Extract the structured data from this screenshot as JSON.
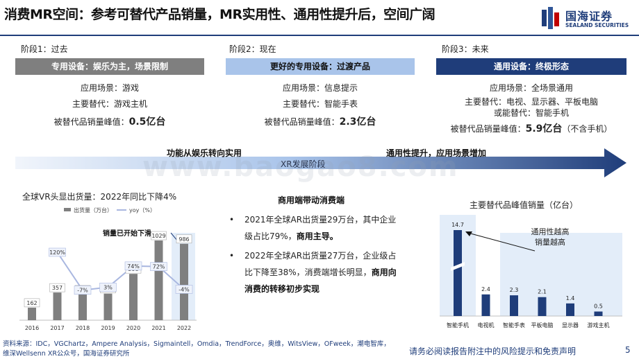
{
  "header": {
    "title": "消费MR空间：参考可替代产品销量，MR实用性、通用性提升后，空间广阔",
    "logo_cn": "国海证券",
    "logo_en": "SEALAND SECURITIES",
    "accent": "#1f3d7a"
  },
  "stages": [
    {
      "label": "阶段1：过去",
      "bar": "专用设备：娱乐为主，场景限制",
      "scene": "应用场景：游戏",
      "replace": "主要替代：游戏主机",
      "replace2": "",
      "peak_prefix": "被替代品销量峰值：",
      "peak_value": "0.5亿台",
      "peak_note": ""
    },
    {
      "label": "阶段2：现在",
      "bar": "更好的专用设备：过渡产品",
      "scene": "应用场景：信息提示",
      "replace": "主要替代：智能手表",
      "replace2": "",
      "peak_prefix": "被替代品销量峰值：",
      "peak_value": "2.3亿台",
      "peak_note": ""
    },
    {
      "label": "阶段3：未来",
      "bar": "通用设备：终极形态",
      "scene": "应用场景：全场景通用",
      "replace": "主要替代：电视、显示器、平板电脑",
      "replace2": "或能替代：智能手机",
      "peak_prefix": "被替代品销量峰值：",
      "peak_value": "5.9亿台",
      "peak_note": "（不含手机）"
    }
  ],
  "arrow": {
    "caption_left": "功能从娱乐转向实用",
    "caption_right": "通用性提升，应用场景增加",
    "label": "XR发展阶段"
  },
  "watermark": "www.baogao8.com",
  "left_chart": {
    "title": "全球VR头显出货量：2022年同比下降4%",
    "legend_bar": "出货量（万台）",
    "legend_line": "yoy（%）",
    "callout": "销量已开始下滑",
    "chart_data": {
      "type": "bar",
      "categories": [
        "2016",
        "2017",
        "2018",
        "2019",
        "2020",
        "2021",
        "2022"
      ],
      "series": [
        {
          "name": "出货量（万台）",
          "values": [
            162,
            357,
            332,
            343,
            598,
            1029,
            986
          ],
          "labels": [
            "162",
            "357",
            "332",
            "343",
            "598",
            "1029",
            "986"
          ]
        },
        {
          "name": "yoy（%）",
          "values": [
            null,
            120,
            -7,
            3,
            74,
            72,
            -4
          ],
          "labels": [
            "",
            "120%",
            "-7%",
            "3%",
            "74%",
            "72%",
            "-4%"
          ]
        }
      ]
    }
  },
  "middle": {
    "title": "商用端带动消费端",
    "bullets": [
      {
        "text": "2021年全球AR出货量29万台，其中企业级占比79%，",
        "bold": "商用主导。"
      },
      {
        "text": "2022年全球AR出货量27万台，企业级占比下降至38%，消费端增长明显，",
        "bold": "商用向消费的转移初步实现"
      }
    ]
  },
  "right_chart": {
    "title": "主要替代品峰值销量（亿台）",
    "annotation_line1": "通用性越高",
    "annotation_line2": "销量越高",
    "chart_data": {
      "type": "bar",
      "categories": [
        "智能手机",
        "电视机",
        "智能手表",
        "平板电脑",
        "显示器",
        "游戏主机"
      ],
      "values": [
        14.7,
        2.4,
        2.3,
        2.1,
        1.4,
        0.5
      ],
      "labels": [
        "14.7",
        "2.4",
        "2.3",
        "2.1",
        "1.4",
        "0.5"
      ]
    }
  },
  "footer": {
    "source": "资料来源：IDC，VGChartz，Ampere Analysis，Sigmaintell，Omdia，TrendForce，奥维，WitsView，OFweek，潮电智库，维深Wellsenn XR公众号，国海证券研究所",
    "disclaimer": "请务必阅读报告附注中的风险提示和免责声明",
    "page": "5"
  }
}
